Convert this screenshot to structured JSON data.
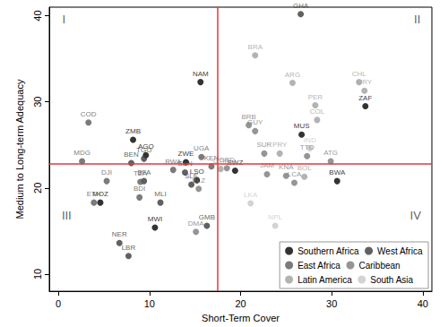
{
  "chart_data": {
    "type": "scatter",
    "x_label": "Short-Term Cover",
    "y_label": "Medium to Long-term Adequacy",
    "xlim": [
      -1,
      41
    ],
    "ylim": [
      8,
      41
    ],
    "xticks": [
      0,
      10,
      20,
      30,
      40
    ],
    "yticks": [
      10,
      20,
      30,
      40
    ],
    "grid": false,
    "legend": "lower right",
    "reference_lines": {
      "x": 17.5,
      "y": 22.8,
      "color": "#e8343c"
    },
    "annotations": [
      {
        "text": "I",
        "x": 0.6,
        "y": 39.6
      },
      {
        "text": "II",
        "x": 39.4,
        "y": 39.6
      },
      {
        "text": "III",
        "x": 0.9,
        "y": 16.8
      },
      {
        "text": "IV",
        "x": 39.2,
        "y": 16.8
      }
    ],
    "series": [
      {
        "name": "Southern Africa",
        "color": "#000000",
        "labels": [
          "NAM",
          "ZAF",
          "MUS",
          "BWA",
          "MWI",
          "MOZ",
          "ZMB",
          "AGO",
          "SWZ",
          "LSO",
          "ZWE"
        ],
        "x": [
          15.6,
          33.7,
          26.7,
          30.6,
          10.6,
          4.6,
          8.2,
          9.6,
          19.4,
          15.2,
          14.0
        ],
        "y": [
          32.3,
          29.5,
          26.2,
          20.8,
          15.4,
          18.3,
          25.6,
          23.8,
          22.0,
          20.9,
          23.0
        ]
      },
      {
        "name": "West Africa",
        "color": "#3a3a3a",
        "labels": [
          "GHA",
          "NER",
          "LBR",
          "MLI",
          "BFA",
          "BEN",
          "TGO",
          "SLE",
          "GMB",
          "SEN"
        ],
        "x": [
          26.6,
          6.7,
          7.7,
          11.2,
          9.4,
          8.0,
          9.4,
          14.6,
          16.3,
          13.9
        ],
        "y": [
          40.2,
          13.6,
          12.1,
          18.3,
          20.8,
          22.9,
          23.4,
          20.4,
          15.6,
          21.8
        ]
      },
      {
        "name": "East Africa",
        "color": "#5a5a5a",
        "labels": [
          "COD",
          "MDG",
          "ETH",
          "DJI",
          "TZA",
          "BDI",
          "RWA",
          "UGA",
          "KEN"
        ],
        "x": [
          3.3,
          2.6,
          3.9,
          5.3,
          9.0,
          8.9,
          12.6,
          15.7,
          16.8
        ],
        "y": [
          27.6,
          23.1,
          18.3,
          20.8,
          20.7,
          18.9,
          22.1,
          23.6,
          22.5
        ]
      },
      {
        "name": "Caribbean",
        "color": "#7a7a7a",
        "labels": [
          "BRB",
          "GUY",
          "SUR",
          "JAM",
          "KNA",
          "DMA",
          "TTO",
          "ATG",
          "LCA",
          "GRD",
          "BLZ"
        ],
        "x": [
          20.9,
          21.6,
          22.6,
          22.9,
          25.0,
          15.1,
          27.3,
          29.9,
          25.9,
          18.5,
          15.4
        ],
        "y": [
          27.3,
          26.6,
          24.0,
          21.6,
          21.4,
          14.9,
          23.7,
          23.1,
          20.6,
          22.3,
          19.9
        ]
      },
      {
        "name": "Latin America",
        "color": "#a0a0a0",
        "labels": [
          "BRA",
          "ARG",
          "PER",
          "CHL",
          "URY",
          "COL",
          "PRY",
          "BOL",
          "GTM"
        ],
        "x": [
          21.6,
          25.7,
          28.2,
          33.0,
          33.6,
          28.4,
          24.3,
          27.0,
          17.8
        ],
        "y": [
          35.4,
          32.2,
          29.6,
          32.3,
          31.3,
          27.9,
          24.0,
          21.3,
          22.2
        ]
      },
      {
        "name": "South Asia",
        "color": "#c8c8c8",
        "labels": [
          "IND",
          "LKA",
          "NPL"
        ],
        "x": [
          27.6,
          21.1,
          23.8
        ],
        "y": [
          24.6,
          18.2,
          15.6
        ]
      }
    ]
  }
}
